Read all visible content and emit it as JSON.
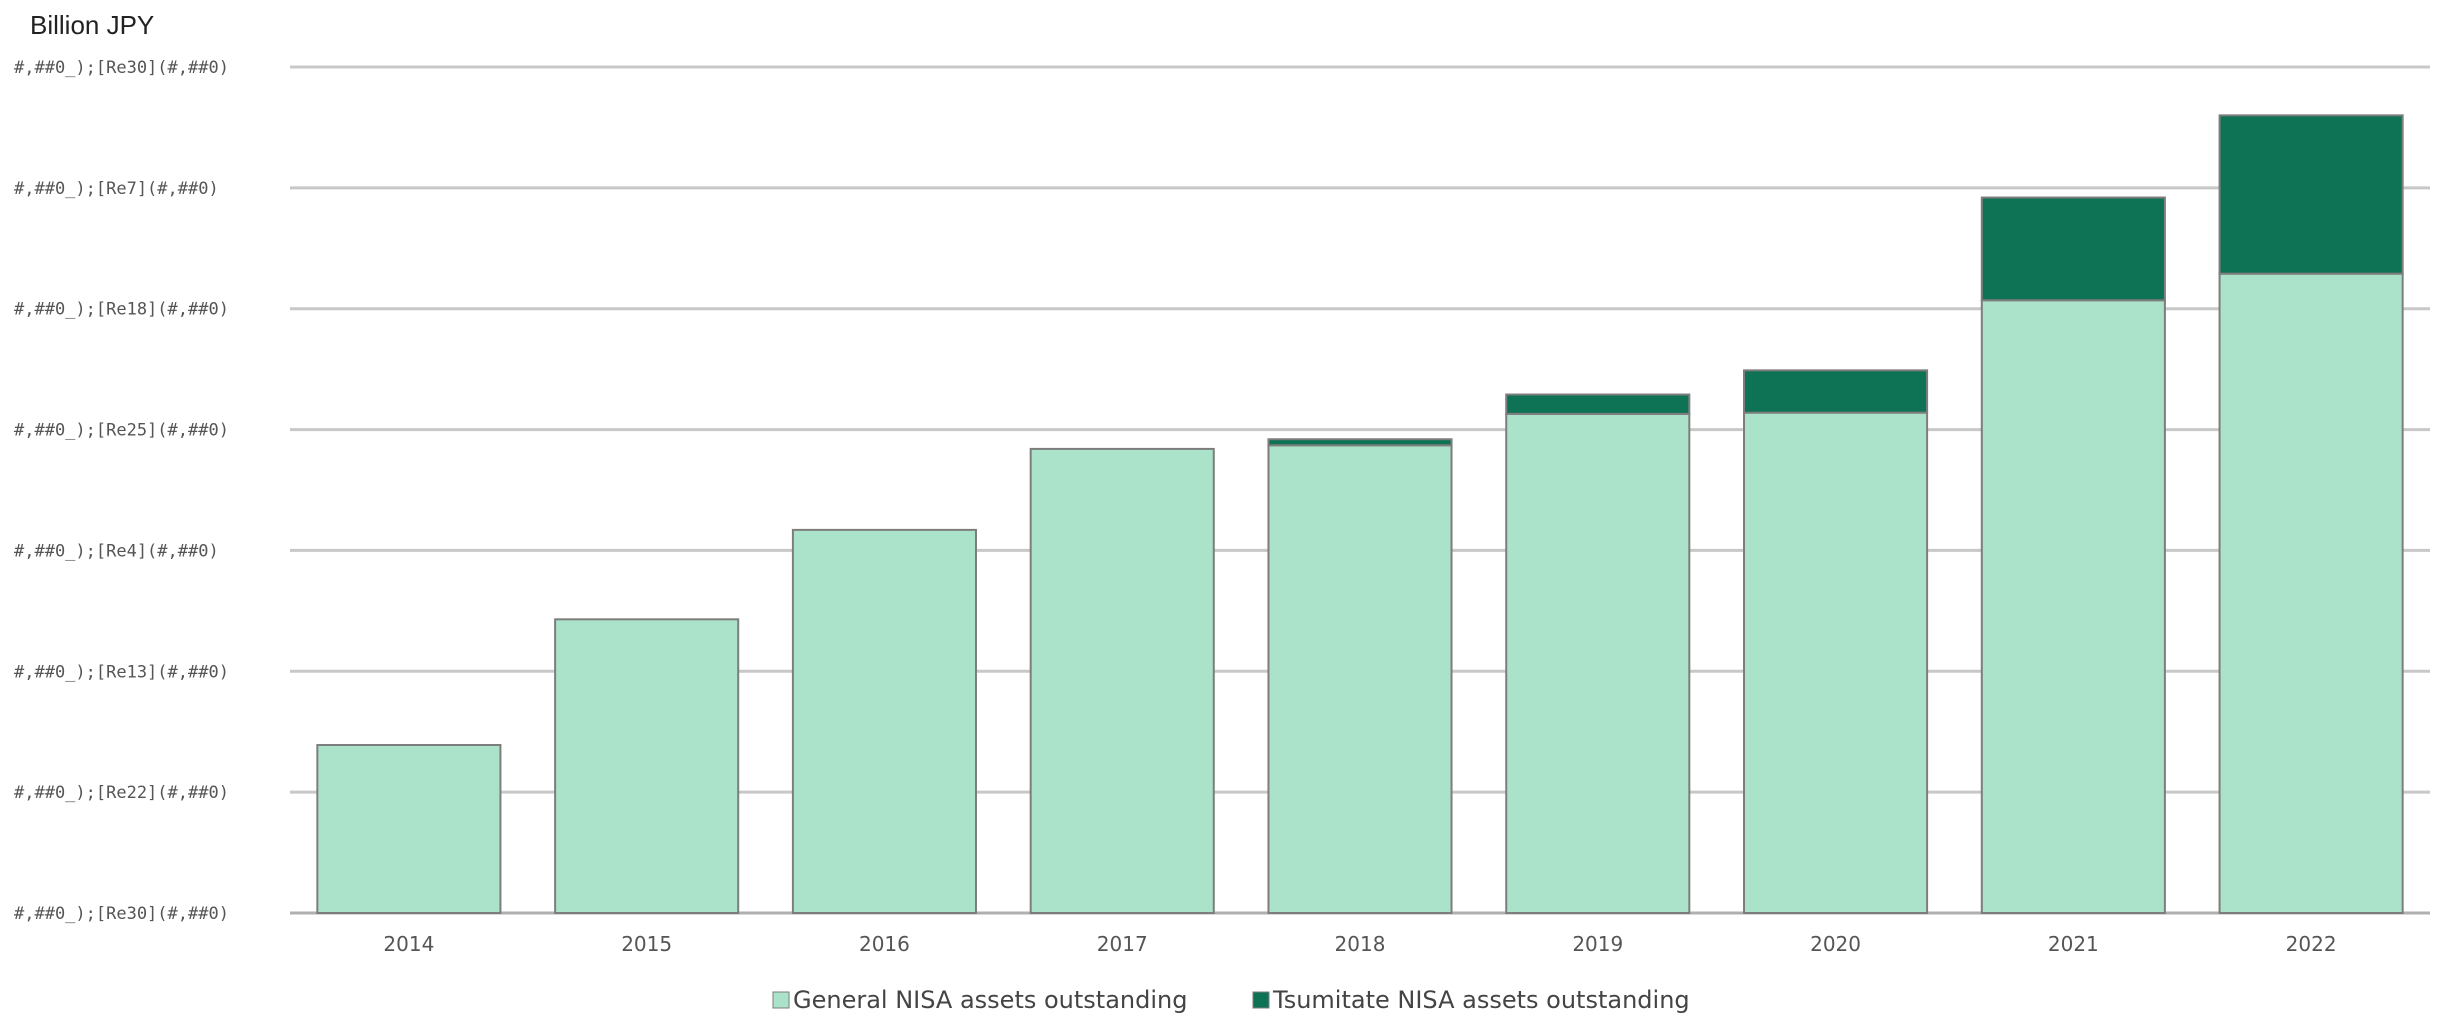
{
  "chart_data": {
    "type": "bar",
    "stacked": true,
    "unit_label": "Billion JPY",
    "categories": [
      "2014",
      "2015",
      "2016",
      "2017",
      "2018",
      "2019",
      "2020",
      "2021",
      "2022"
    ],
    "y_tick_labels": [
      "#,##0_);[Re30](#,##0)",
      "#,##0_);[Re22](#,##0)",
      "#,##0_);[Re13](#,##0)",
      "#,##0_);[Re4](#,##0)",
      "#,##0_);[Re25](#,##0)",
      "#,##0_);[Re18](#,##0)",
      "#,##0_);[Re7](#,##0)",
      "#,##0_);[Re30](#,##0)"
    ],
    "ylim": [
      0,
      7
    ],
    "grid": true,
    "legend_position": "bottom-center",
    "series": [
      {
        "name": "General NISA assets outstanding",
        "color": "#aae3c9",
        "values": [
          1.39,
          2.43,
          3.17,
          3.84,
          3.87,
          4.13,
          4.14,
          5.07,
          5.29
        ]
      },
      {
        "name": "Tsumitate NISA assets outstanding",
        "color": "#0e7355",
        "values": [
          0,
          0,
          0,
          0,
          0.05,
          0.16,
          0.35,
          0.85,
          1.31
        ]
      }
    ]
  }
}
